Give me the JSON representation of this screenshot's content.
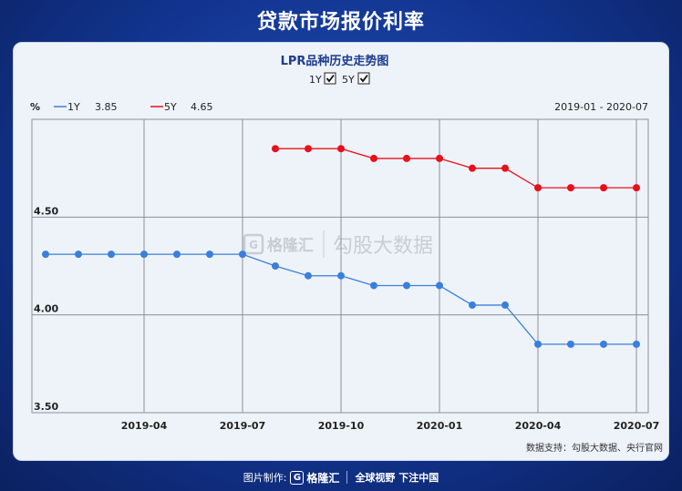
{
  "header": {
    "title": "贷款市场报价利率"
  },
  "chart_panel": {
    "title": "LPR品种历史走势图",
    "toggles": [
      {
        "label": "1Y",
        "checked": true
      },
      {
        "label": "5Y",
        "checked": true
      }
    ],
    "date_range": "2019-01 - 2020-07",
    "watermark_brand": "格隆汇",
    "watermark_text": "勾股大数据",
    "source": "数据支持：勾股大数据、央行官网"
  },
  "footer": {
    "made_by": "图片制作:",
    "brand": "格隆汇",
    "slogan": "全球视野 下注中国"
  },
  "colors": {
    "series_1y": "#3a7fdc",
    "series_5y": "#e8101a",
    "background": "#12348f",
    "card": "#eef3fa"
  },
  "chart_data": {
    "type": "line",
    "ylabel": "%",
    "ylim": [
      3.5,
      5.0
    ],
    "yticks": [
      "3.50",
      "4.00",
      "4.50"
    ],
    "xticks": [
      "2019-04",
      "2019-07",
      "2019-10",
      "2020-01",
      "2020-04",
      "2020-07"
    ],
    "grid": true,
    "legend_placement": "top-left",
    "series": [
      {
        "name": "1Y",
        "latest": "3.85",
        "x": [
          "2019-01",
          "2019-02",
          "2019-03",
          "2019-04",
          "2019-05",
          "2019-06",
          "2019-07",
          "2019-08",
          "2019-09",
          "2019-10",
          "2019-11",
          "2019-12",
          "2020-01",
          "2020-02",
          "2020-03",
          "2020-04",
          "2020-05",
          "2020-06",
          "2020-07"
        ],
        "values": [
          4.31,
          4.31,
          4.31,
          4.31,
          4.31,
          4.31,
          4.31,
          4.25,
          4.2,
          4.2,
          4.15,
          4.15,
          4.15,
          4.05,
          4.05,
          3.85,
          3.85,
          3.85,
          3.85
        ]
      },
      {
        "name": "5Y",
        "latest": "4.65",
        "x": [
          "2019-08",
          "2019-09",
          "2019-10",
          "2019-11",
          "2019-12",
          "2020-01",
          "2020-02",
          "2020-03",
          "2020-04",
          "2020-05",
          "2020-06",
          "2020-07"
        ],
        "values": [
          4.85,
          4.85,
          4.85,
          4.8,
          4.8,
          4.8,
          4.75,
          4.75,
          4.65,
          4.65,
          4.65,
          4.65
        ]
      }
    ]
  }
}
